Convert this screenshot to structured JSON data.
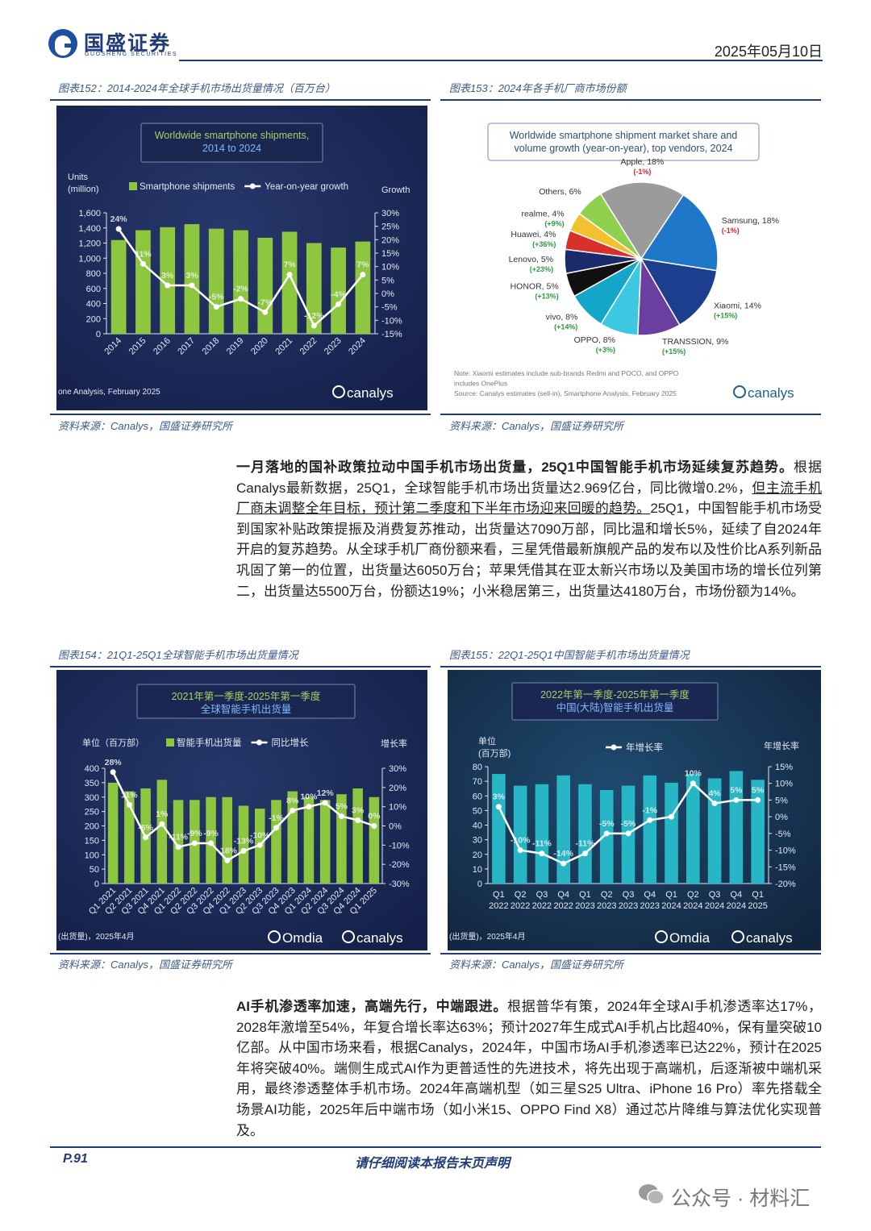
{
  "header": {
    "logo": "国盛证券",
    "logo_sub": "GUOSHENG SECURITIES",
    "date": "2025年05月10日"
  },
  "chart_data": [
    {
      "type": "combo",
      "caption": "图表152：2014-2024年全球手机市场出货量情况（百万台）",
      "title_lines": [
        "Worldwide smartphone shipments,",
        "2014 to 2024"
      ],
      "y_label_lines": [
        "Units",
        "(million)"
      ],
      "y2_label": "Growth",
      "categories": [
        "2014",
        "2015",
        "2016",
        "2017",
        "2018",
        "2019",
        "2020",
        "2021",
        "2022",
        "2023",
        "2024"
      ],
      "series": [
        {
          "name": "Smartphone shipments",
          "type": "bar",
          "color": "#8dc63f",
          "values": [
            1240,
            1370,
            1410,
            1450,
            1390,
            1370,
            1270,
            1350,
            1200,
            1140,
            1220
          ]
        },
        {
          "name": "Year-on-year growth",
          "type": "line",
          "axis": "y2",
          "color": "#ffffff",
          "values": [
            24,
            11,
            3,
            3,
            -5,
            -2,
            -7,
            7,
            -12,
            -4,
            7
          ],
          "value_labels": [
            "24%",
            "11%",
            "3%",
            "3%",
            "-5%",
            "-2%",
            "-7%",
            "7%",
            "-12%",
            "-4%",
            "7%"
          ]
        }
      ],
      "ylim": [
        0,
        1600
      ],
      "yticks": [
        0,
        200,
        400,
        600,
        800,
        {
          "value": 1000,
          "label": "1,000"
        },
        {
          "value": 1200,
          "label": "1,200"
        },
        {
          "value": 1400,
          "label": "1,400"
        },
        {
          "value": 1600,
          "label": "1,600"
        }
      ],
      "y2lim": [
        -15,
        30
      ],
      "y2ticks": [
        {
          "value": -15,
          "label": "-15%"
        },
        {
          "value": -10,
          "label": "-10%"
        },
        {
          "value": -5,
          "label": "-5%"
        },
        {
          "value": 0,
          "label": "0%"
        },
        {
          "value": 5,
          "label": "5%"
        },
        {
          "value": 10,
          "label": "10%"
        },
        {
          "value": 15,
          "label": "15%"
        },
        {
          "value": 20,
          "label": "20%"
        },
        {
          "value": 25,
          "label": "25%"
        },
        {
          "value": 30,
          "label": "30%"
        }
      ],
      "footer": "one Analysis, February 2025",
      "logos": [
        "canalys"
      ],
      "source": "资料来源：Canalys，国盛证券研究所"
    },
    {
      "type": "pie",
      "caption": "图表153：2024年各手机厂商市场份额",
      "title_lines": [
        "Worldwide smartphone shipment market share and",
        "volume growth (year-on-year), top vendors, 2024"
      ],
      "values": [
        18,
        18,
        14,
        9,
        8,
        8,
        5,
        5,
        4,
        4,
        6
      ],
      "value_labels": [
        "Apple, 18%",
        "Samsung, 18%",
        "Xiaomi, 14%",
        "TRANSSION, 9%",
        "OPPO, 8%",
        "vivo, 8%",
        "HONOR, 5%",
        "Lenovo, 5%",
        "Huawei, 4%",
        "realme, 4%",
        "Others, 6%"
      ],
      "growth_labels": [
        "(-1%)",
        "(-1%)",
        "(+15%)",
        "(+15%)",
        "(+3%)",
        "(+14%)",
        "(+13%)",
        "(+23%)",
        "(+36%)",
        "(+9%)",
        null
      ],
      "colors": [
        "#9b9b9b",
        "#1f77c9",
        "#1d3d8f",
        "#6b3fa0",
        "#3cc8e0",
        "#13a6c9",
        "#111111",
        "#1b2a6b",
        "#d9302c",
        "#f2c12e",
        "#8fd14f"
      ],
      "notes": [
        "Note: Xiaomi estimates include sub-brands Redmi and POCO, and OPPO",
        "includes OnePlus",
        "Source: Canalys estimates (sell-in), Smartphone Analysis, February 2025"
      ],
      "logos": [
        "canalys"
      ],
      "source": "资料来源：Canalys，国盛证券研究所"
    },
    {
      "type": "combo",
      "caption": "图表154：21Q1-25Q1全球智能手机市场出货量情况",
      "title_lines": [
        "2021年第一季度-2025年第一季度",
        "全球智能手机出货量"
      ],
      "y_label_lines": [
        "单位（百万部）"
      ],
      "y2_label": "增长率",
      "categories": [
        "Q1 2021",
        "Q2 2021",
        "Q3 2021",
        "Q4 2021",
        "Q1 2022",
        "Q2 2022",
        "Q3 2022",
        "Q4 2022",
        "Q1 2023",
        "Q2 2023",
        "Q3 2023",
        "Q4 2023",
        "Q1 2024",
        "Q2 2024",
        "Q3 2024",
        "Q4 2024",
        "Q1 2025"
      ],
      "series": [
        {
          "name": "智能手机出货量",
          "type": "bar",
          "color": "#8dc63f",
          "values": [
            350,
            320,
            330,
            360,
            290,
            290,
            300,
            300,
            270,
            260,
            290,
            320,
            300,
            290,
            310,
            330,
            300
          ]
        },
        {
          "name": "同比增长",
          "type": "line",
          "axis": "y2",
          "color": "#ffffff",
          "values": [
            28,
            11,
            -6,
            1,
            -11,
            -9,
            -9,
            -18,
            -13,
            -10,
            -1,
            8,
            10,
            12,
            5,
            3,
            0
          ],
          "value_labels": [
            "28%",
            "11%",
            "-6%",
            "1%",
            "-11%",
            "-9%",
            "-9%",
            "-18%",
            "-13%",
            "-10%",
            "-1%",
            "8%",
            "10%",
            "12%",
            "5%",
            "3%",
            "0%"
          ]
        }
      ],
      "ylim": [
        0,
        400
      ],
      "yticks": [
        0,
        50,
        100,
        150,
        200,
        250,
        300,
        350,
        400
      ],
      "y2lim": [
        -30,
        30
      ],
      "y2ticks": [
        {
          "value": -30,
          "label": "-30%"
        },
        {
          "value": -20,
          "label": "-20%"
        },
        {
          "value": -10,
          "label": "-10%"
        },
        {
          "value": 0,
          "label": "0%"
        },
        {
          "value": 10,
          "label": "10%"
        },
        {
          "value": 20,
          "label": "20%"
        },
        {
          "value": 30,
          "label": "30%"
        }
      ],
      "footer": "(出货量)，2025年4月",
      "logos": [
        "Omdia",
        "canalys"
      ],
      "source": "资料来源：Canalys，国盛证券研究所"
    },
    {
      "type": "combo",
      "caption": "图表155：22Q1-25Q1中国智能手机市场出货量情况",
      "title_lines": [
        "2022年第一季度-2025年第一季度",
        "中国(大陆)智能手机出货量"
      ],
      "y_label_lines": [
        "单位",
        "(百万部)"
      ],
      "y2_label": "年增长率",
      "categories": [
        "Q1 2022",
        "Q2 2022",
        "Q3 2022",
        "Q4 2022",
        "Q1 2023",
        "Q2 2023",
        "Q3 2023",
        "Q4 2023",
        "Q1 2024",
        "Q2 2024",
        "Q3 2024",
        "Q4 2024",
        "Q1 2025"
      ],
      "series": [
        {
          "type": "bar",
          "color": "#27b6c6",
          "values": [
            75,
            67,
            68,
            74,
            68,
            64,
            67,
            74,
            69,
            75,
            72,
            77,
            71
          ]
        },
        {
          "name": "年增长率",
          "type": "line",
          "axis": "y2",
          "color": "#ffffff",
          "values": [
            3,
            -10,
            -11,
            -14,
            -11,
            -5,
            -5,
            -1,
            0,
            10,
            4,
            5,
            5
          ],
          "value_labels": [
            "3%",
            "-10%",
            "-11%",
            "-14%",
            "-11%",
            "-5%",
            "-5%",
            "-1%",
            null,
            "10%",
            "4%",
            "5%",
            "5%"
          ]
        }
      ],
      "ylim": [
        0,
        80
      ],
      "yticks": [
        0,
        10,
        20,
        30,
        40,
        50,
        60,
        70,
        80
      ],
      "y2lim": [
        -20,
        15
      ],
      "y2ticks": [
        {
          "value": -20,
          "label": "-20%"
        },
        {
          "value": -15,
          "label": "-15%"
        },
        {
          "value": -10,
          "label": "-10%"
        },
        {
          "value": -5,
          "label": "-5%"
        },
        {
          "value": 0,
          "label": "0%"
        },
        {
          "value": 5,
          "label": "5%"
        },
        {
          "value": 10,
          "label": "10%"
        },
        {
          "value": 15,
          "label": "15%"
        }
      ],
      "footer": "(出货量)，2025年4月",
      "logos": [
        "Omdia",
        "canalys"
      ],
      "source": "资料来源：Canalys，国盛证券研究所"
    }
  ],
  "paragraphs": [
    [
      {
        "style": "bold",
        "text": "一月落地的国补政策拉动中国手机市场出货量，25Q1中国智能手机市场延续复苏趋势。"
      },
      {
        "style": "normal",
        "text": "根据Canalys最新数据，25Q1，全球智能手机市场出货量达2.969亿台，同比微增0.2%，"
      },
      {
        "style": "underline",
        "text": "但主流手机厂商未调整全年目标，预计第二季度和下半年市场迎来回暖的趋势。"
      },
      {
        "style": "normal",
        "text": "25Q1，中国智能手机市场受到国家补贴政策提振及消费复苏推动，出货量达7090万部，同比温和增长5%，延续了自2024年开启的复苏趋势。从全球手机厂商份额来看，三星凭借最新旗舰产品的发布以及性价比A系列新品巩固了第一的位置，出货量达6050万台；苹果凭借其在亚太新兴市场以及美国市场的增长位列第二，出货量达5500万台，份额达19%；小米稳居第三，出货量达4180万台，市场份额为14%。"
      }
    ],
    [
      {
        "style": "bold",
        "text": "AI手机渗透率加速，高端先行，中端跟进。"
      },
      {
        "style": "normal",
        "text": "根据普华有策，2024年全球AI手机渗透率达17%，2028年激增至54%，年复合增长率达63%；预计2027年生成式AI手机占比超40%，保有量突破10亿部。从中国市场来看，根据Canalys，2024年，中国市场AI手机渗透率已达22%，预计在2025年将突破40%。端侧生成式AI作为更普适性的先进技术，将先出现于高端机，后逐渐被中端机采用，最终渗透整体手机市场。2024年高端机型（如三星S25 Ultra、iPhone 16 Pro）率先搭载全场景AI功能，2025年后中端市场（如小米15、OPPO Find X8）通过芯片降维与算法优化实现普及。"
      }
    ]
  ],
  "footer": {
    "page": "P.91",
    "notice": "请仔细阅读本报告末页声明"
  },
  "watermark": "公众号 · 材料汇"
}
